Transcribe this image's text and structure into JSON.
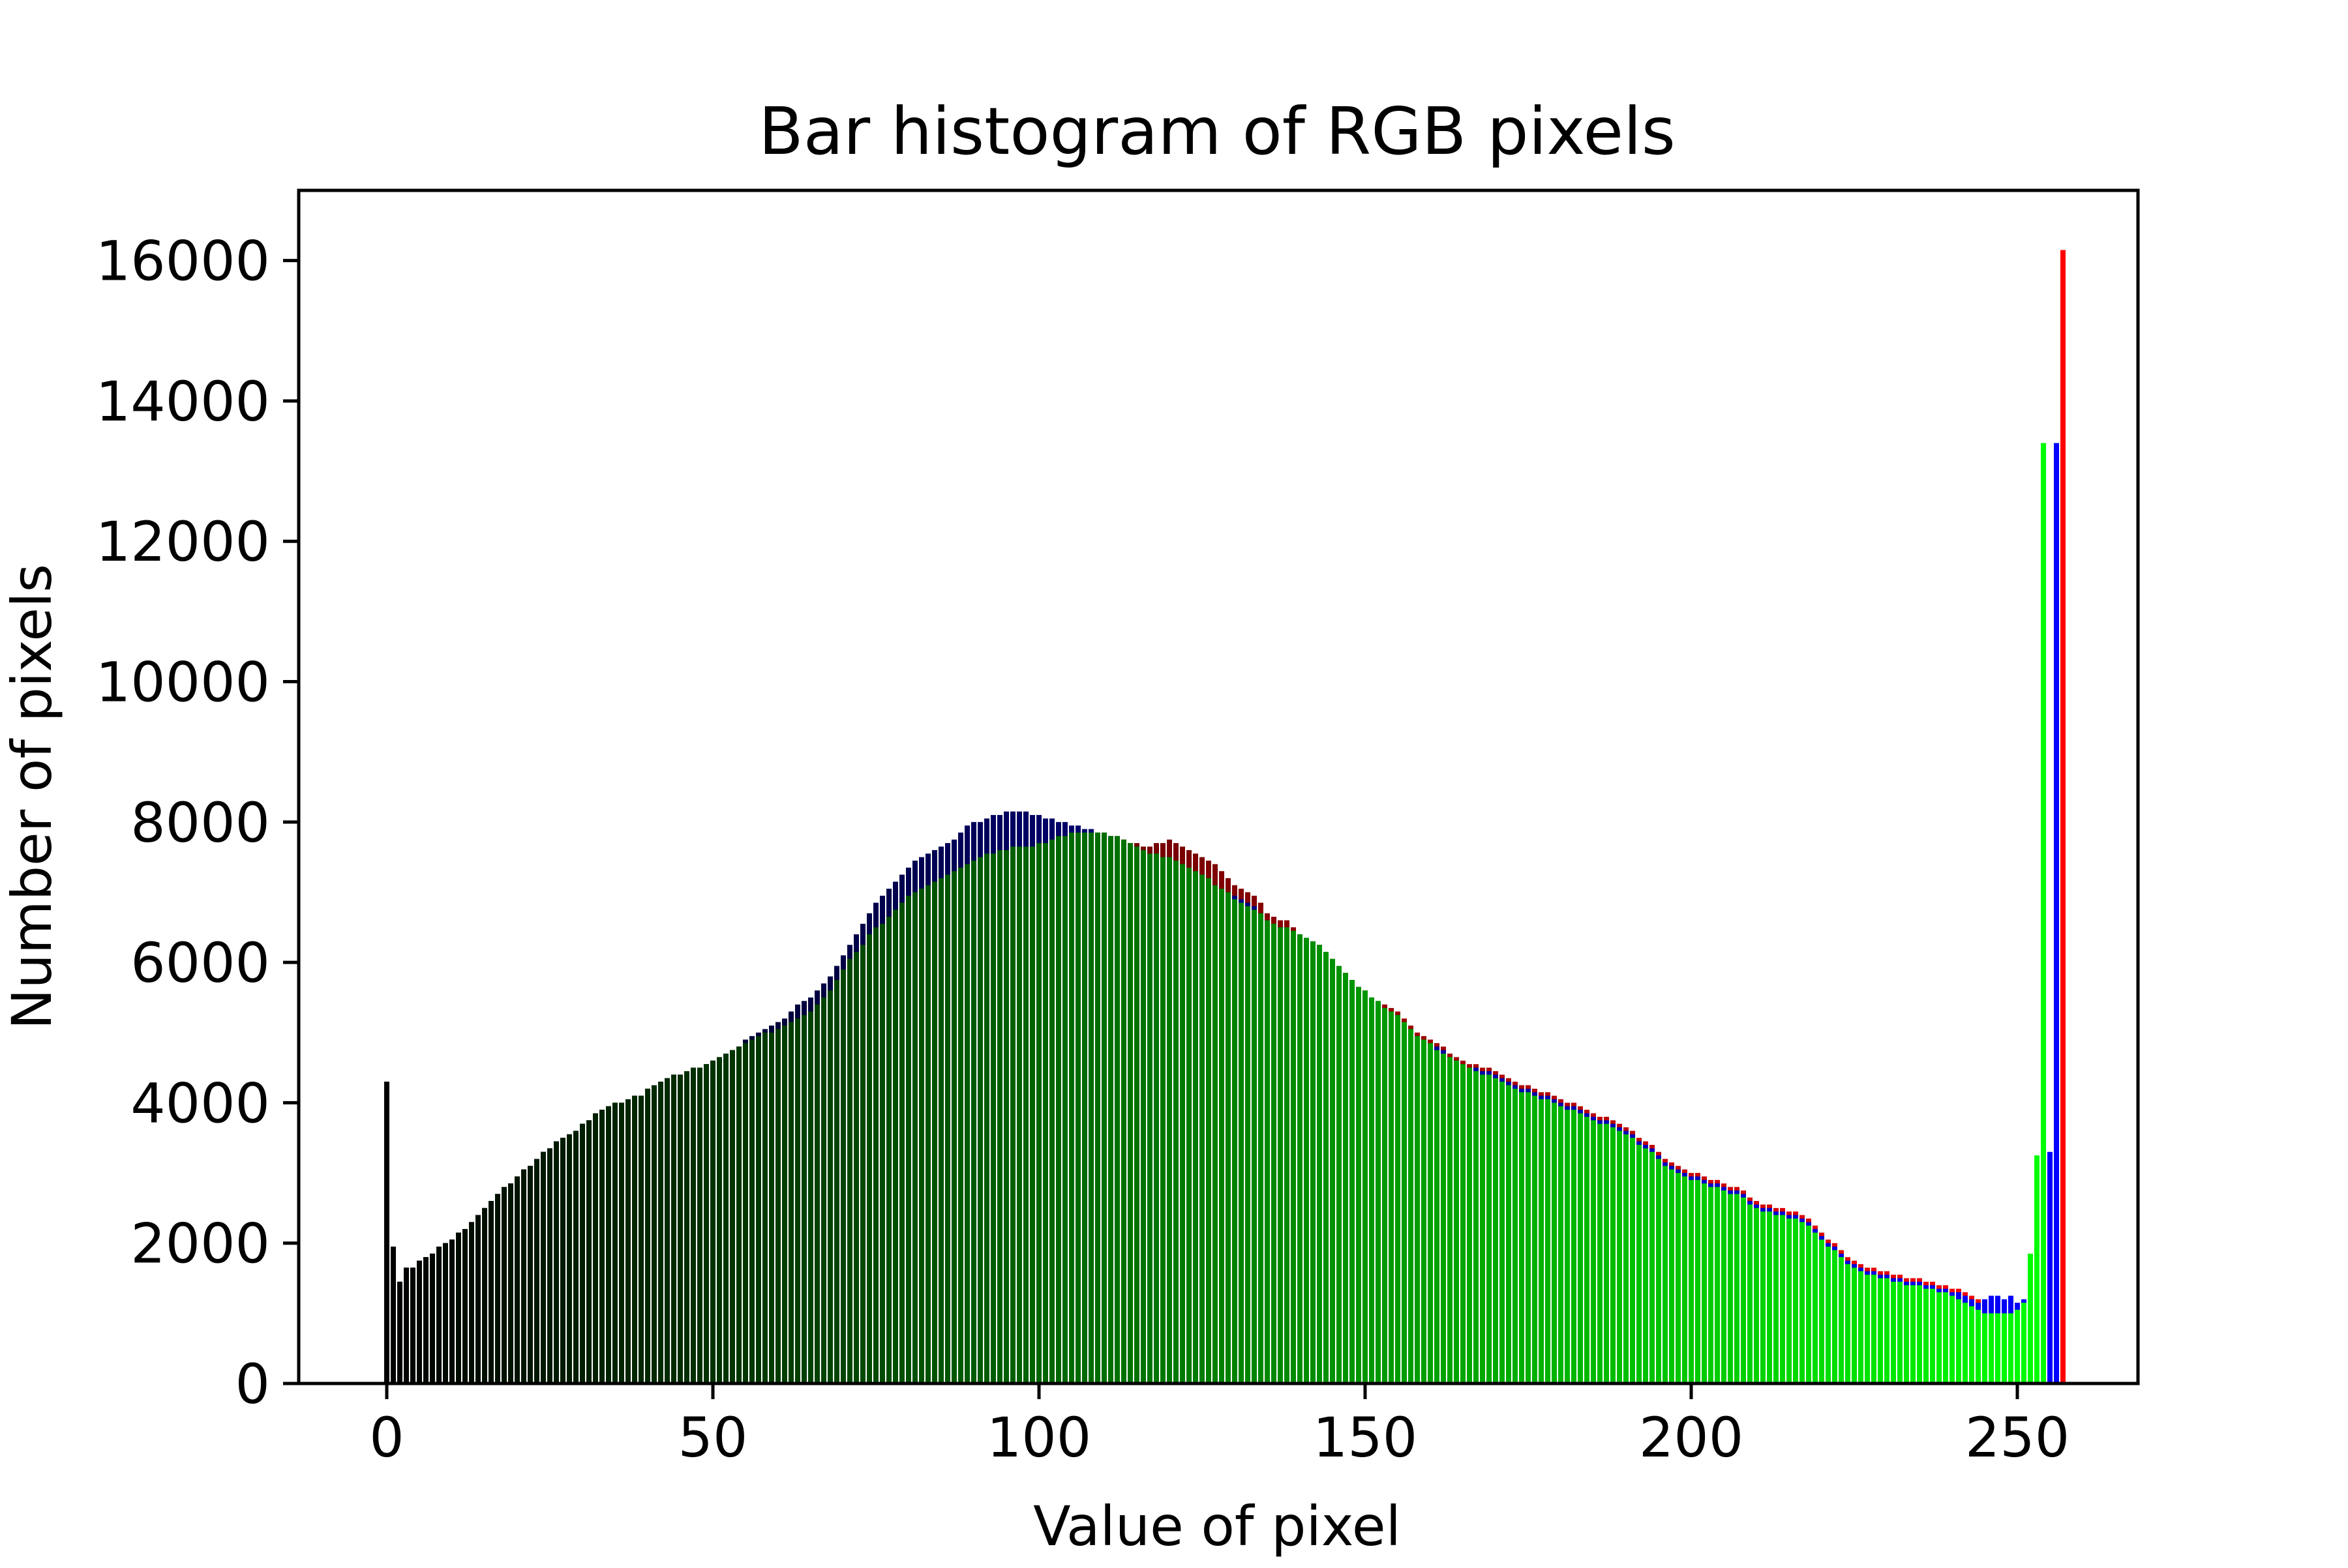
{
  "colors": {
    "red": "#ff0000",
    "green": "#00ff00",
    "blue": "#0000ff",
    "axis": "#000000",
    "background": "#ffffff"
  },
  "chart_data": {
    "type": "bar",
    "title": "Bar histogram of RGB pixels",
    "xlabel": "Value of pixel",
    "ylabel": "Number of pixels",
    "xlim": [
      -13.5,
      268.5
    ],
    "ylim": [
      0,
      17000
    ],
    "xticks": [
      0,
      50,
      100,
      150,
      200,
      250
    ],
    "yticks": [
      0,
      2000,
      4000,
      6000,
      8000,
      10000,
      12000,
      14000,
      16000
    ],
    "grid": false,
    "legend": "none",
    "bar_color_note": "each bar is drawn in the color (v,0,0),(0,0,v),(0,v,0) for pixel value v; later series drawn over earlier",
    "series": [
      {
        "color_channel": "red",
        "values": [
          4300,
          1950,
          1450,
          1650,
          1650,
          1750,
          1800,
          1850,
          1950,
          2000,
          2050,
          2150,
          2200,
          2300,
          2400,
          2500,
          2600,
          2700,
          2800,
          2850,
          2950,
          3050,
          3100,
          3200,
          3300,
          3350,
          3450,
          3500,
          3550,
          3600,
          3700,
          3750,
          3850,
          3900,
          3950,
          4000,
          4000,
          4050,
          4100,
          4100,
          4200,
          4250,
          4300,
          4350,
          4400,
          4400,
          4450,
          4500,
          4500,
          4550,
          4600,
          4650,
          4700,
          4750,
          4800,
          4850,
          4900,
          4950,
          5000,
          5000,
          5050,
          5100,
          5150,
          5200,
          5250,
          5300,
          5400,
          5500,
          5600,
          5750,
          5900,
          6050,
          6150,
          6250,
          6400,
          6500,
          6600,
          6700,
          6800,
          6900,
          7000,
          7050,
          7100,
          7150,
          7200,
          7250,
          7300,
          7350,
          7400,
          7450,
          7500,
          7550,
          7600,
          7600,
          7650,
          7650,
          7700,
          7700,
          7700,
          7700,
          7700,
          7750,
          7750,
          7800,
          7800,
          7800,
          7850,
          7850,
          7850,
          7850,
          7850,
          7800,
          7800,
          7750,
          7700,
          7700,
          7650,
          7650,
          7700,
          7700,
          7750,
          7700,
          7650,
          7600,
          7550,
          7500,
          7450,
          7400,
          7300,
          7200,
          7100,
          7050,
          7000,
          6950,
          6850,
          6700,
          6650,
          6600,
          6600,
          6500,
          6400,
          6350,
          6300,
          6250,
          6150,
          6050,
          5950,
          5850,
          5750,
          5650,
          5600,
          5500,
          5450,
          5400,
          5350,
          5300,
          5200,
          5100,
          5000,
          4950,
          4900,
          4850,
          4800,
          4700,
          4650,
          4600,
          4550,
          4550,
          4500,
          4500,
          4450,
          4400,
          4350,
          4300,
          4250,
          4250,
          4200,
          4150,
          4150,
          4100,
          4050,
          4000,
          4000,
          3950,
          3900,
          3850,
          3800,
          3800,
          3750,
          3700,
          3650,
          3600,
          3500,
          3450,
          3400,
          3300,
          3200,
          3150,
          3100,
          3050,
          3000,
          3000,
          2950,
          2900,
          2900,
          2850,
          2800,
          2800,
          2750,
          2650,
          2600,
          2550,
          2550,
          2500,
          2500,
          2450,
          2450,
          2400,
          2350,
          2250,
          2150,
          2050,
          2000,
          1900,
          1800,
          1750,
          1700,
          1650,
          1650,
          1600,
          1600,
          1550,
          1550,
          1500,
          1500,
          1500,
          1450,
          1450,
          1400,
          1400,
          1350,
          1350,
          1300,
          1250,
          1200,
          1150,
          1100,
          1050,
          1050,
          1050,
          1000,
          1050,
          1050,
          1100,
          1200,
          1550,
          3300,
          16150
        ]
      },
      {
        "color_channel": "blue",
        "values": [
          4300,
          1950,
          1450,
          1650,
          1650,
          1750,
          1800,
          1850,
          1950,
          2000,
          2050,
          2150,
          2200,
          2300,
          2400,
          2500,
          2600,
          2700,
          2800,
          2850,
          2950,
          3050,
          3100,
          3200,
          3300,
          3350,
          3450,
          3500,
          3550,
          3600,
          3700,
          3750,
          3850,
          3900,
          3950,
          4000,
          4000,
          4050,
          4100,
          4100,
          4200,
          4250,
          4300,
          4350,
          4400,
          4400,
          4450,
          4500,
          4500,
          4550,
          4600,
          4650,
          4700,
          4750,
          4800,
          4900,
          4950,
          5000,
          5050,
          5100,
          5150,
          5200,
          5300,
          5400,
          5450,
          5500,
          5600,
          5700,
          5800,
          5950,
          6100,
          6250,
          6400,
          6550,
          6700,
          6850,
          6950,
          7050,
          7150,
          7250,
          7350,
          7450,
          7500,
          7550,
          7600,
          7650,
          7700,
          7750,
          7850,
          7950,
          8000,
          8000,
          8050,
          8100,
          8100,
          8150,
          8150,
          8150,
          8150,
          8100,
          8100,
          8050,
          8050,
          8000,
          8000,
          7950,
          7950,
          7900,
          7900,
          7850,
          7850,
          7800,
          7750,
          7700,
          7650,
          7600,
          7550,
          7500,
          7500,
          7450,
          7450,
          7400,
          7350,
          7300,
          7250,
          7200,
          7150,
          7100,
          7050,
          7000,
          6950,
          6900,
          6850,
          6800,
          6700,
          6600,
          6550,
          6500,
          6450,
          6400,
          6350,
          6300,
          6250,
          6200,
          6100,
          6000,
          5900,
          5800,
          5700,
          5650,
          5550,
          5500,
          5400,
          5350,
          5300,
          5250,
          5150,
          5050,
          4950,
          4900,
          4850,
          4800,
          4750,
          4650,
          4600,
          4550,
          4500,
          4500,
          4450,
          4450,
          4400,
          4350,
          4300,
          4250,
          4200,
          4200,
          4150,
          4100,
          4100,
          4050,
          4000,
          3950,
          3950,
          3900,
          3850,
          3800,
          3750,
          3750,
          3700,
          3650,
          3600,
          3550,
          3450,
          3400,
          3350,
          3250,
          3150,
          3100,
          3050,
          3000,
          2950,
          2950,
          2900,
          2850,
          2850,
          2800,
          2750,
          2750,
          2700,
          2600,
          2550,
          2500,
          2500,
          2450,
          2450,
          2400,
          2400,
          2350,
          2300,
          2200,
          2100,
          2000,
          1950,
          1850,
          1750,
          1700,
          1650,
          1600,
          1600,
          1550,
          1550,
          1500,
          1500,
          1450,
          1450,
          1450,
          1400,
          1400,
          1350,
          1350,
          1300,
          1300,
          1250,
          1200,
          1150,
          1200,
          1250,
          1250,
          1200,
          1250,
          1150,
          1200,
          1250,
          1350,
          1950,
          3300,
          13400
        ]
      },
      {
        "color_channel": "green",
        "values": [
          4300,
          1950,
          1450,
          1650,
          1650,
          1750,
          1800,
          1850,
          1950,
          2000,
          2050,
          2150,
          2200,
          2300,
          2400,
          2500,
          2600,
          2700,
          2800,
          2850,
          2950,
          3050,
          3100,
          3200,
          3300,
          3350,
          3450,
          3500,
          3550,
          3600,
          3700,
          3750,
          3850,
          3900,
          3950,
          4000,
          4000,
          4050,
          4100,
          4100,
          4200,
          4250,
          4300,
          4350,
          4400,
          4400,
          4450,
          4500,
          4500,
          4550,
          4600,
          4650,
          4700,
          4750,
          4800,
          4850,
          4900,
          4950,
          5000,
          5000,
          5050,
          5100,
          5150,
          5200,
          5250,
          5300,
          5400,
          5500,
          5600,
          5750,
          5900,
          6050,
          6150,
          6250,
          6400,
          6500,
          6550,
          6650,
          6750,
          6850,
          6950,
          7000,
          7050,
          7100,
          7150,
          7200,
          7250,
          7300,
          7350,
          7400,
          7450,
          7500,
          7550,
          7550,
          7600,
          7600,
          7650,
          7650,
          7650,
          7650,
          7700,
          7700,
          7750,
          7800,
          7800,
          7850,
          7850,
          7850,
          7850,
          7850,
          7850,
          7800,
          7800,
          7750,
          7700,
          7650,
          7600,
          7550,
          7550,
          7500,
          7500,
          7450,
          7400,
          7350,
          7300,
          7250,
          7200,
          7100,
          7050,
          7000,
          6900,
          6850,
          6800,
          6750,
          6700,
          6600,
          6550,
          6500,
          6500,
          6450,
          6400,
          6350,
          6300,
          6250,
          6150,
          6050,
          5950,
          5850,
          5750,
          5650,
          5600,
          5500,
          5450,
          5350,
          5300,
          5250,
          5150,
          5050,
          4950,
          4900,
          4850,
          4750,
          4700,
          4650,
          4600,
          4550,
          4500,
          4450,
          4400,
          4400,
          4350,
          4300,
          4250,
          4200,
          4150,
          4150,
          4100,
          4050,
          4050,
          4000,
          3950,
          3900,
          3900,
          3850,
          3800,
          3750,
          3700,
          3700,
          3650,
          3600,
          3550,
          3500,
          3400,
          3350,
          3300,
          3200,
          3100,
          3050,
          3000,
          2950,
          2900,
          2900,
          2850,
          2800,
          2800,
          2750,
          2700,
          2700,
          2650,
          2550,
          2500,
          2450,
          2450,
          2400,
          2400,
          2350,
          2350,
          2300,
          2250,
          2150,
          2050,
          1950,
          1900,
          1800,
          1700,
          1650,
          1600,
          1550,
          1550,
          1500,
          1500,
          1450,
          1450,
          1400,
          1400,
          1400,
          1350,
          1350,
          1300,
          1300,
          1250,
          1200,
          1150,
          1100,
          1050,
          1000,
          1000,
          1000,
          1000,
          1000,
          1050,
          1150,
          1850,
          3250,
          13400
        ]
      }
    ]
  }
}
